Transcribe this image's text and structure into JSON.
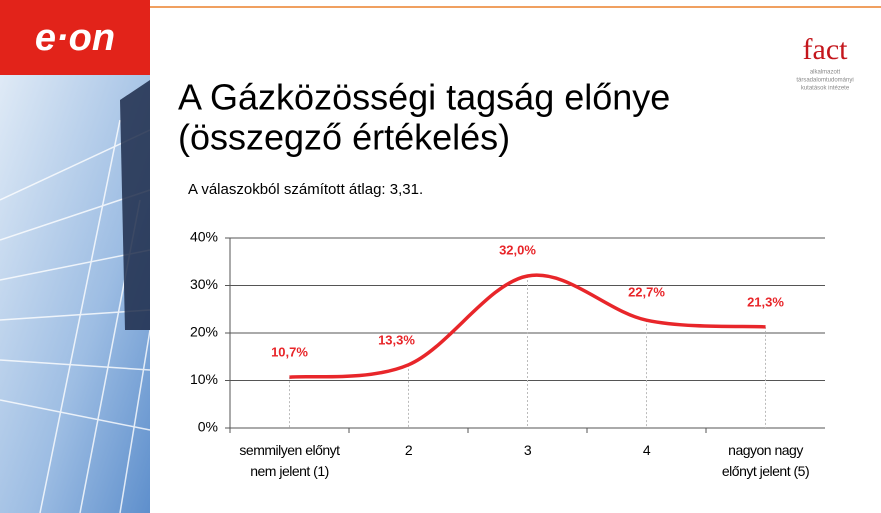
{
  "slide": {
    "logo": "e·on",
    "brand": "fact",
    "brand_tagline": [
      "alkalmazott",
      "társadalomtudományi",
      "kutatások intézete"
    ],
    "title": [
      "A Gázközösségi tagság előnye",
      "(összegző értékelés)"
    ],
    "subtitle": "A válaszokból számított átlag: 3,31."
  },
  "chart_data": {
    "type": "line",
    "categories": [
      "semmilyen előnyt nem jelent (1)",
      "2",
      "3",
      "4",
      "nagyon nagy előnyt jelent (5)"
    ],
    "values": [
      10.7,
      13.3,
      32.0,
      22.7,
      21.3
    ],
    "value_labels": [
      "10,7%",
      "13,3%",
      "32,0%",
      "22,7%",
      "21,3%"
    ],
    "color": "#e8262a",
    "ylim": [
      0,
      40
    ],
    "yticks": [
      {
        "value": 0,
        "label": "0%"
      },
      {
        "value": 10,
        "label": "10%"
      },
      {
        "value": 20,
        "label": "20%"
      },
      {
        "value": 30,
        "label": "30%"
      },
      {
        "value": 40,
        "label": "40%"
      }
    ],
    "grid": true
  }
}
